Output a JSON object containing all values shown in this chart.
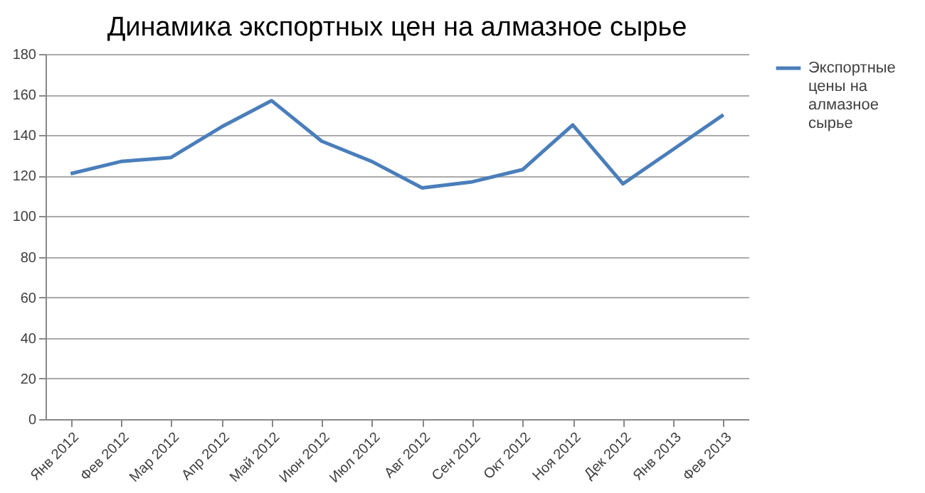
{
  "chart_data": {
    "type": "line",
    "title": "Динамика экспортных цен на алмазное сырье",
    "categories": [
      "Янв 2012",
      "Фев 2012",
      "Мар 2012",
      "Апр 2012",
      "Май 2012",
      "Июн 2012",
      "Июл 2012",
      "Авг 2012",
      "Сен 2012",
      "Окт 2012",
      "Ноя 2012",
      "Дек 2012",
      "Янв 2013",
      "Фев 2013"
    ],
    "series": [
      {
        "name": "Экспортные цены на алмазное сырье",
        "color": "#4a7ebb",
        "values": [
          121,
          127,
          129,
          144,
          157,
          137,
          127,
          114,
          117,
          123,
          145,
          116,
          133,
          150
        ]
      }
    ],
    "ylim": [
      0,
      180
    ],
    "yticks": [
      0,
      20,
      40,
      60,
      80,
      100,
      120,
      140,
      160,
      180
    ],
    "grid": "y",
    "legend": "right",
    "marker": "none",
    "line_style": "solid"
  }
}
